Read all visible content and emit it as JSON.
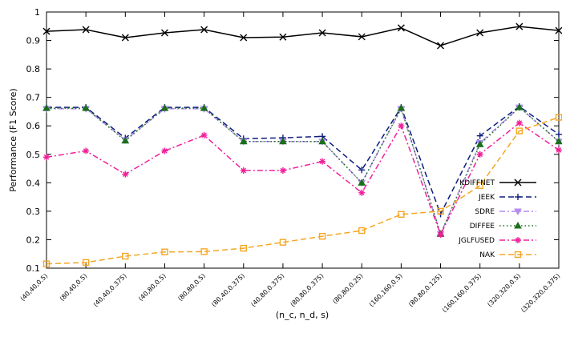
{
  "chart_data": {
    "type": "line",
    "xlabel": "(n_c, n_d, s)",
    "ylabel": "Performance (F1 Score)",
    "categories": [
      "(40,40,0.5)",
      "(80,40,0.5)",
      "(40,40,0.375)",
      "(40,80,0.5)",
      "(80,80,0.5)",
      "(80,40,0.375)",
      "(40,80,0.375)",
      "(80,80,0.375)",
      "(80,80,0.25)",
      "(160,160,0.5)",
      "(80,80,0.125)",
      "(160,160,0.375)",
      "(320,320,0.5)",
      "(320,320,0.375)"
    ],
    "ylim": [
      0.1,
      1
    ],
    "yticks": [
      0.1,
      0.2,
      0.3,
      0.4,
      0.5,
      0.6,
      0.7,
      0.8,
      0.9,
      1
    ],
    "legend": "right",
    "series": [
      {
        "name": "KDIFFNET",
        "color": "#000000",
        "line_style": "solid",
        "marker": "x",
        "values": [
          0.932,
          0.938,
          0.91,
          0.927,
          0.938,
          0.91,
          0.912,
          0.927,
          0.913,
          0.944,
          0.882,
          0.927,
          0.949,
          0.935
        ]
      },
      {
        "name": "JEEK",
        "color": "#0d1d82",
        "line_style": "dashed",
        "marker": "plus",
        "values": [
          0.665,
          0.665,
          0.557,
          0.665,
          0.665,
          0.555,
          0.558,
          0.563,
          0.445,
          0.665,
          0.29,
          0.565,
          0.668,
          0.57
        ]
      },
      {
        "name": "SDRE",
        "color": "#b48cf2",
        "line_style": "dashdot",
        "marker": "triangle-down",
        "values": [
          0.66,
          0.66,
          0.55,
          0.66,
          0.66,
          0.545,
          0.545,
          0.545,
          0.4,
          0.66,
          0.22,
          0.54,
          0.665,
          0.545
        ]
      },
      {
        "name": "DIFFEE",
        "color": "#1b6e1b",
        "line_style": "dotted",
        "marker": "triangle-up",
        "values": [
          0.662,
          0.662,
          0.548,
          0.662,
          0.662,
          0.545,
          0.545,
          0.545,
          0.4,
          0.662,
          0.22,
          0.535,
          0.665,
          0.545
        ]
      },
      {
        "name": "JGLFUSED",
        "color": "#f0209a",
        "line_style": "dashdot",
        "marker": "star",
        "values": [
          0.49,
          0.512,
          0.43,
          0.512,
          0.567,
          0.443,
          0.443,
          0.475,
          0.365,
          0.6,
          0.218,
          0.5,
          0.61,
          0.515
        ]
      },
      {
        "name": "NAK",
        "color": "#f5a623",
        "line_style": "dashed",
        "marker": "square",
        "values": [
          0.115,
          0.12,
          0.142,
          0.157,
          0.158,
          0.17,
          0.191,
          0.212,
          0.232,
          0.289,
          0.3,
          0.39,
          0.582,
          0.63
        ]
      }
    ]
  }
}
